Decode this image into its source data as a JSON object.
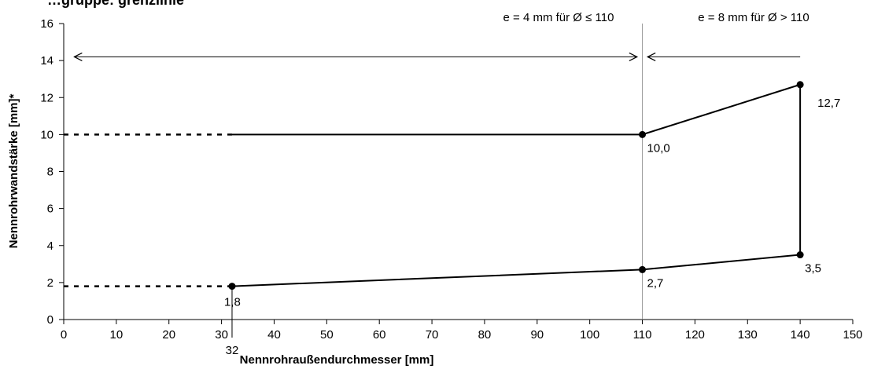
{
  "chart_data": {
    "type": "line",
    "title": "…gruppe: grenzlinie",
    "xlabel": "Nennrohraußendurchmesser [mm]",
    "ylabel": "Nennrohrwandstärke [mm]*",
    "xlim": [
      0,
      150
    ],
    "ylim": [
      0,
      16
    ],
    "x_ticks": [
      0,
      10,
      20,
      30,
      40,
      50,
      60,
      70,
      80,
      90,
      100,
      110,
      120,
      130,
      140,
      150
    ],
    "y_ticks": [
      0,
      2,
      4,
      6,
      8,
      10,
      12,
      14,
      16
    ],
    "grid": false,
    "legend": "none",
    "extra_tick": {
      "x": 32,
      "label": "32"
    },
    "series": [
      {
        "points": [
          [
            32,
            10.0
          ],
          [
            110,
            10.0
          ],
          [
            140,
            12.7
          ]
        ],
        "style": "solid"
      },
      {
        "points": [
          [
            32,
            1.8
          ],
          [
            110,
            2.7
          ],
          [
            140,
            3.5
          ]
        ],
        "style": "solid"
      },
      {
        "points": [
          [
            140,
            3.5
          ],
          [
            140,
            12.7
          ]
        ],
        "style": "solid"
      },
      {
        "points": [
          [
            0,
            10.0
          ],
          [
            32,
            10.0
          ]
        ],
        "style": "dotted"
      },
      {
        "points": [
          [
            0,
            1.8
          ],
          [
            32,
            1.8
          ]
        ],
        "style": "dotted"
      }
    ],
    "markers": [
      {
        "x": 110,
        "y": 10.0,
        "label": "10,0",
        "pos": "below-right"
      },
      {
        "x": 140,
        "y": 12.7,
        "label": "12,7",
        "pos": "below-right-far"
      },
      {
        "x": 32,
        "y": 1.8,
        "label": "1,8",
        "pos": "below"
      },
      {
        "x": 110,
        "y": 2.7,
        "label": "2,7",
        "pos": "below-right"
      },
      {
        "x": 140,
        "y": 3.5,
        "label": "3,5",
        "pos": "below-right"
      }
    ],
    "vline": {
      "x": 110,
      "color": "#9a9a9a"
    },
    "ranges": [
      {
        "from": 2,
        "to": 109,
        "y": 14.2,
        "label": "e = 4 mm für Ø ≤ 110"
      },
      {
        "from": 111,
        "to": 140,
        "y": 14.2,
        "label": "e = 8 mm für Ø > 110"
      }
    ],
    "colors": {
      "line": "#000000",
      "vline": "#9a9a9a",
      "background": "#ffffff"
    }
  }
}
